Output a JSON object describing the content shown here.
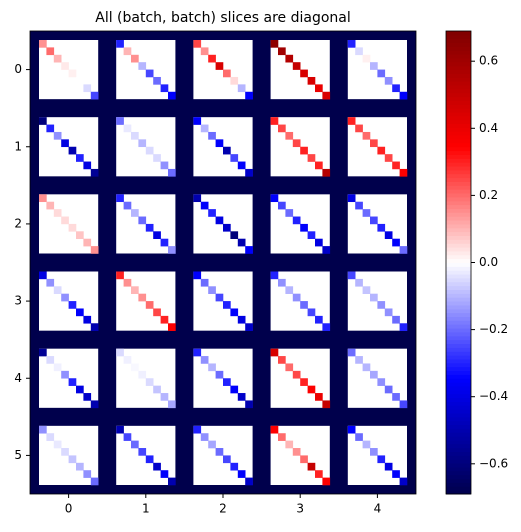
{
  "chart_data": {
    "type": "heatmap",
    "title": "All (batch, batch) slices are diagonal",
    "xticks": [
      0,
      1,
      2,
      3,
      4
    ],
    "yticks": [
      0,
      1,
      2,
      3,
      4,
      5
    ],
    "colormap": [
      "#00004c",
      "#0000ff",
      "#ffffff",
      "#ff0000",
      "#7f0000"
    ],
    "clim": [
      -0.69,
      0.69
    ],
    "cticks": [
      {
        "value": -0.6,
        "label": "−0.6"
      },
      {
        "value": -0.4,
        "label": "−0.4"
      },
      {
        "value": -0.2,
        "label": "−0.2"
      },
      {
        "value": 0,
        "label": "0.0"
      },
      {
        "value": 0.2,
        "label": "0.2"
      },
      {
        "value": 0.4,
        "label": "0.4"
      },
      {
        "value": 0.6,
        "label": "0.6"
      }
    ],
    "fill_value": -0.69,
    "off_diagonal_value": 0,
    "blocks": [
      [
        [
          0.15,
          0.2,
          0.1,
          0.03,
          0.02,
          0.0,
          -0.05,
          -0.25
        ],
        [
          -0.3,
          0.1,
          0.15,
          -0.1,
          -0.25,
          -0.2,
          -0.3,
          -0.35
        ],
        [
          0.25,
          0.15,
          0.3,
          0.45,
          0.2,
          0.05,
          -0.1,
          -0.35
        ],
        [
          0.65,
          0.6,
          0.55,
          0.5,
          0.45,
          0.45,
          0.4,
          0.45
        ],
        [
          -0.3,
          -0.05,
          0.02,
          -0.1,
          -0.2,
          -0.15,
          -0.3,
          -0.35
        ]
      ],
      [
        [
          -0.6,
          -0.3,
          -0.15,
          -0.4,
          -0.5,
          -0.3,
          -0.4,
          -0.55
        ],
        [
          -0.2,
          -0.03,
          -0.05,
          -0.1,
          -0.05,
          -0.05,
          -0.15,
          -0.2
        ],
        [
          -0.35,
          -0.1,
          -0.2,
          -0.35,
          -0.5,
          -0.25,
          -0.35,
          -0.45
        ],
        [
          0.3,
          0.25,
          0.2,
          0.25,
          0.3,
          0.25,
          0.3,
          0.55
        ],
        [
          0.3,
          0.25,
          0.2,
          0.25,
          0.3,
          0.25,
          0.3,
          0.35
        ]
      ],
      [
        [
          0.15,
          0.1,
          0.05,
          0.05,
          0.05,
          0.08,
          0.1,
          0.15
        ],
        [
          -0.3,
          -0.2,
          -0.1,
          -0.2,
          -0.3,
          -0.4,
          -0.3,
          -0.15
        ],
        [
          -0.5,
          -0.35,
          -0.3,
          -0.4,
          -0.45,
          -0.6,
          -0.5,
          -0.35
        ],
        [
          -0.35,
          -0.25,
          -0.2,
          -0.3,
          -0.35,
          -0.3,
          -0.4,
          -0.45
        ],
        [
          -0.4,
          -0.25,
          -0.2,
          -0.25,
          -0.3,
          -0.4,
          -0.35,
          -0.2
        ]
      ],
      [
        [
          -0.4,
          -0.15,
          -0.05,
          -0.15,
          -0.3,
          -0.35,
          -0.4,
          -0.5
        ],
        [
          0.3,
          0.15,
          0.1,
          0.15,
          0.2,
          0.25,
          0.3,
          0.35
        ],
        [
          -0.35,
          -0.2,
          -0.15,
          -0.25,
          -0.3,
          -0.35,
          -0.4,
          -0.45
        ],
        [
          -0.3,
          -0.15,
          -0.1,
          -0.15,
          -0.2,
          -0.25,
          -0.3,
          -0.3
        ],
        [
          -0.25,
          -0.1,
          -0.08,
          -0.1,
          -0.15,
          -0.15,
          -0.2,
          -0.3
        ]
      ],
      [
        [
          -0.55,
          -0.05,
          -0.02,
          -0.15,
          -0.3,
          -0.4,
          -0.45,
          -0.5
        ],
        [
          -0.05,
          -0.02,
          -0.01,
          -0.02,
          -0.05,
          -0.08,
          -0.1,
          -0.12
        ],
        [
          -0.3,
          -0.15,
          -0.1,
          -0.2,
          -0.3,
          -0.35,
          -0.45,
          -0.5
        ],
        [
          0.45,
          0.25,
          0.2,
          0.25,
          0.3,
          0.35,
          0.4,
          0.5
        ],
        [
          -0.2,
          -0.1,
          -0.1,
          -0.12,
          -0.15,
          -0.2,
          -0.2,
          -0.25
        ]
      ],
      [
        [
          -0.15,
          -0.05,
          -0.03,
          -0.05,
          -0.08,
          -0.1,
          -0.15,
          -0.2
        ],
        [
          -0.5,
          -0.25,
          -0.2,
          -0.25,
          -0.3,
          -0.45,
          -0.35,
          -0.5
        ],
        [
          -0.3,
          -0.15,
          -0.12,
          -0.2,
          -0.25,
          -0.3,
          -0.35,
          -0.45
        ],
        [
          0.35,
          0.2,
          0.1,
          0.15,
          0.2,
          0.5,
          0.3,
          0.35
        ],
        [
          -0.35,
          -0.2,
          -0.1,
          -0.15,
          -0.3,
          -0.4,
          -0.35,
          -0.45
        ]
      ]
    ]
  }
}
